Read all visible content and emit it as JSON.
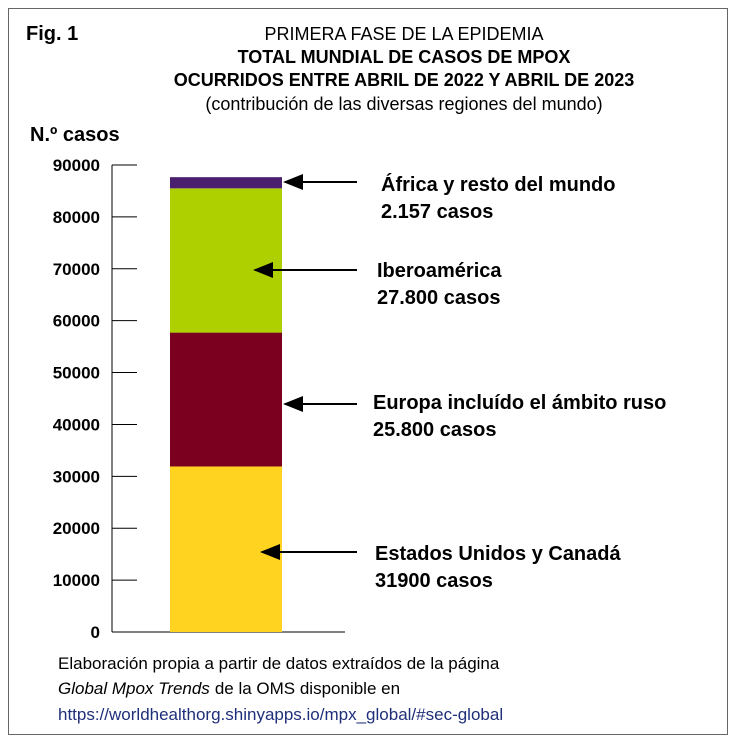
{
  "chart_data": {
    "type": "stacked_bar",
    "figure_label": "Fig. 1",
    "title": "PRIMERA FASE DE LA EPIDEMIA",
    "subtitle": [
      "TOTAL MUNDIAL DE CASOS DE MPOX",
      "OCURRIDOS ENTRE ABRIL DE 2022 Y ABRIL DE 2023",
      "(contribución de las diversas regiones del mundo)"
    ],
    "y_label": "N.º casos",
    "categories": [
      null
    ],
    "series": [
      {
        "name": "Estados Unidos y Canadá",
        "color": "#ffd320",
        "values": [
          31900
        ],
        "value_labels": [
          "31900 casos"
        ]
      },
      {
        "name": "Europa incluído el ámbito ruso",
        "color": "#7b0020",
        "values": [
          25800
        ],
        "value_labels": [
          "25.800 casos"
        ]
      },
      {
        "name": "Iberoamérica",
        "color": "#aecf00",
        "values": [
          27800
        ],
        "value_labels": [
          "27.800 casos"
        ]
      },
      {
        "name": "África y resto del mundo",
        "color": "#4b1f6f",
        "values": [
          2157
        ],
        "value_labels": [
          "2.157 casos"
        ]
      }
    ],
    "ylim": [
      0,
      90000
    ],
    "yticks": [
      0,
      10000,
      20000,
      30000,
      40000,
      50000,
      60000,
      70000,
      80000,
      90000
    ],
    "grid": false,
    "source": [
      "Elaboración propia a partir de datos extraídos de la página",
      "Global Mpox Trends",
      "de la OMS disponible en",
      "https://worldhealthorg.shinyapps.io/mpx_global/#sec-global"
    ]
  }
}
